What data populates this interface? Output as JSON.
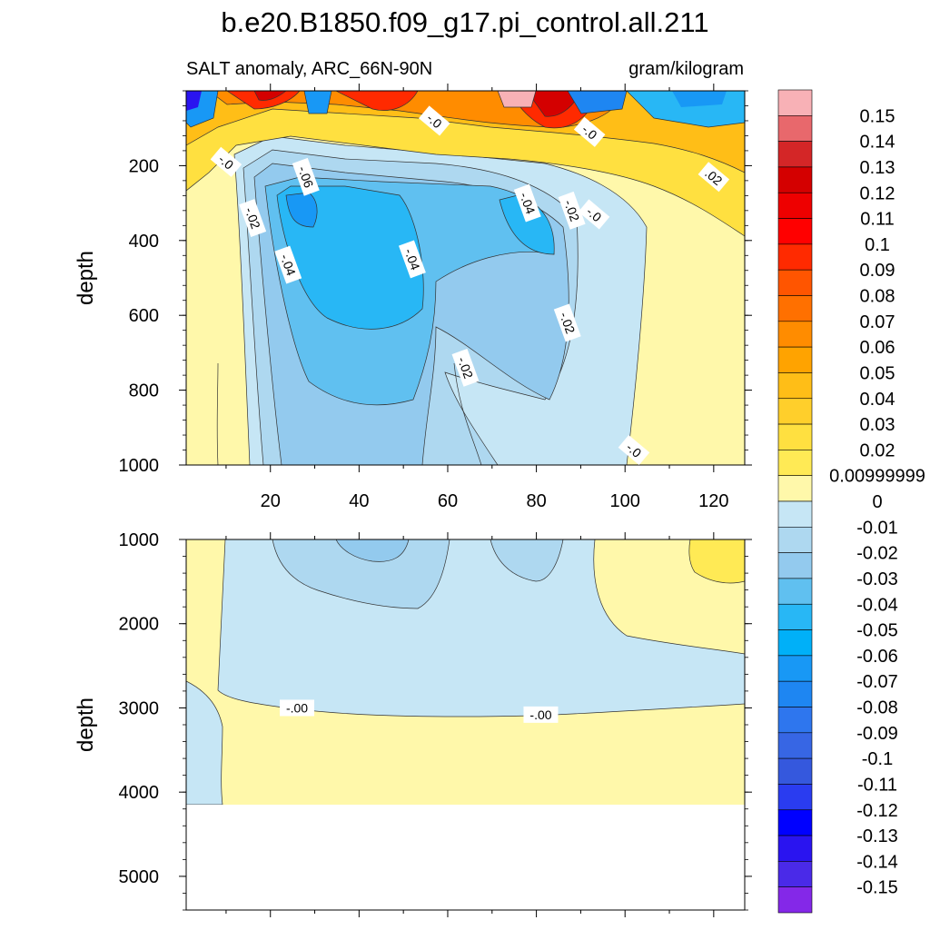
{
  "chart_data": {
    "type": "heatmap",
    "title": "b.e20.B1850.f09_g17.pi_control.all.211",
    "subtitle_left": "SALT anomaly, ARC_66N-90N",
    "subtitle_right": "gram/kilogram",
    "x_ticks": [
      "20",
      "40",
      "60",
      "80",
      "100",
      "120"
    ],
    "x_range": [
      1,
      127
    ],
    "top_panel": {
      "ylabel": "depth",
      "y_range": [
        0,
        1000
      ],
      "y_ticks": [
        "200",
        "400",
        "600",
        "800",
        "1000"
      ],
      "contour_labels": [
        {
          "text": "-.0",
          "x": 10,
          "y": 190
        },
        {
          "text": "-.06",
          "x": 28,
          "y": 230
        },
        {
          "text": "-.02",
          "x": 16,
          "y": 340
        },
        {
          "text": "-.04",
          "x": 24,
          "y": 465
        },
        {
          "text": "-.04",
          "x": 52,
          "y": 450
        },
        {
          "text": "-.0",
          "x": 57,
          "y": 80
        },
        {
          "text": "-.04",
          "x": 78,
          "y": 300
        },
        {
          "text": "-.02",
          "x": 88,
          "y": 320
        },
        {
          "text": "-.0",
          "x": 93,
          "y": 330
        },
        {
          "text": "-.0",
          "x": 92,
          "y": 110
        },
        {
          "text": ".02",
          "x": 120,
          "y": 230
        },
        {
          "text": "-.02",
          "x": 87,
          "y": 620
        },
        {
          "text": "-.02",
          "x": 64,
          "y": 740
        },
        {
          "text": "-.0",
          "x": 102,
          "y": 960
        }
      ]
    },
    "bottom_panel": {
      "ylabel": "depth",
      "y_range": [
        1000,
        5400
      ],
      "y_ticks": [
        "1000",
        "2000",
        "3000",
        "4000",
        "5000"
      ],
      "contour_labels": [
        {
          "text": "-.00",
          "x": 26,
          "y": 3000
        },
        {
          "text": "-.00",
          "x": 81,
          "y": 3080
        }
      ]
    },
    "colorbar": {
      "labels": [
        "0.15",
        "0.14",
        "0.13",
        "0.12",
        "0.11",
        "0.1",
        "0.09",
        "0.08",
        "0.07",
        "0.06",
        "0.05",
        "0.04",
        "0.03",
        "0.02",
        "0.00999999",
        "0",
        "-0.01",
        "-0.02",
        "-0.03",
        "-0.04",
        "-0.05",
        "-0.06",
        "-0.07",
        "-0.08",
        "-0.09",
        "-0.1",
        "-0.11",
        "-0.12",
        "-0.13",
        "-0.14",
        "-0.15"
      ],
      "colors": [
        "#F8B1B6",
        "#E8686C",
        "#D42627",
        "#D40000",
        "#EE0000",
        "#FF0000",
        "#FF2A00",
        "#FF5500",
        "#FF7000",
        "#FF8C00",
        "#FFA300",
        "#FFBE17",
        "#FFCF2B",
        "#FFE040",
        "#FFEA55",
        "#FFF8AA",
        "#C6E6F5",
        "#AED8F0",
        "#93CAEE",
        "#60C0F0",
        "#28B7F5",
        "#00B0F8",
        "#1898F5",
        "#1E86F2",
        "#2E76EE",
        "#3766E4",
        "#3558DD",
        "#2A3CF0",
        "#0000FF",
        "#2A14F0",
        "#4A2AE8",
        "#8428E8"
      ]
    }
  }
}
